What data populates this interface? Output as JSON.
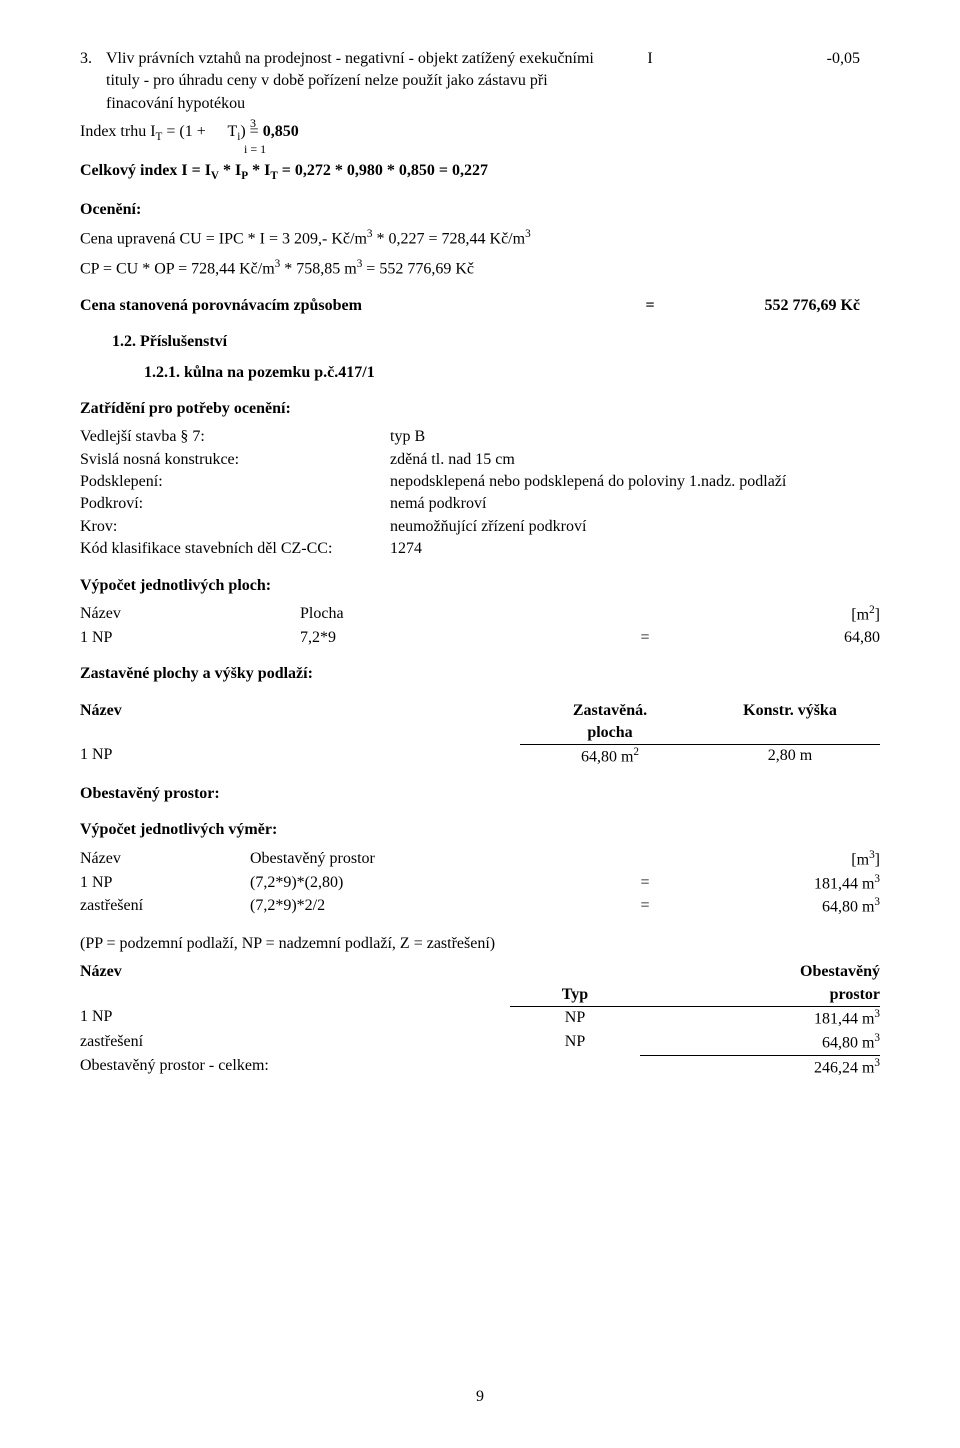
{
  "top_item": {
    "num": "3.",
    "text": "Vliv právních vztahů na prodejnost - negativní - objekt zatížený exekučními tituly - pro úhradu ceny v době pořízení nelze  použít jako zástavu při finacování hypotékou",
    "col_i": "I",
    "col_val": "-0,05"
  },
  "index_formula": {
    "line": "Index trhu I",
    "sub_t": "T",
    "rest": " = (1 + ",
    "sum_top": "3",
    "sum_placeholder": "",
    "t_i": " T",
    "sub_i": "i",
    "close": ") = ",
    "val": "0,850",
    "sum_bottom": "i = 1"
  },
  "celkovy": "Celkový index I = IV * IP * IT = 0,272 * 0,980 * 0,850 = 0,227",
  "celkovy_parts": {
    "pre": "Celkový index I = I",
    "v": "V",
    "s1": " * I",
    "p": "P",
    "s2": " * I",
    "t": "T",
    "rest": " = 0,272 * 0,980 * 0,850 = 0,227"
  },
  "oceneni": {
    "heading": "Ocenění:",
    "line1_pre": "Cena upravená CU = IPC * I = 3 209,- Kč/m",
    "line1_sup1": "3",
    "line1_mid": " * 0,227 = 728,44 Kč/m",
    "line1_sup2": "3",
    "line2_pre": "CP = CU * OP = 728,44 Kč/m",
    "line2_sup1": "3",
    "line2_mid": " * 758,85 m",
    "line2_sup2": "3",
    "line2_rest": " = 552 776,69 Kč"
  },
  "cena_stanovena": {
    "label": "Cena stanovená porovnávacím způsobem",
    "eq": "=",
    "val": "552 776,69 Kč"
  },
  "h12": "1.2. Příslušenství",
  "h121": "1.2.1. kůlna  na pozemku p.č.417/1",
  "zatrideni": {
    "heading": "Zatřídění pro potřeby ocenění:",
    "rows": [
      {
        "l": "Vedlejší stavba § 7:",
        "r": "typ B"
      },
      {
        "l": "Svislá nosná konstrukce:",
        "r": "zděná tl. nad 15 cm"
      },
      {
        "l": "Podsklepení:",
        "r": "nepodsklepená nebo podsklepená do poloviny 1.nadz. podlaží"
      },
      {
        "l": "Podkroví:",
        "r": "nemá podkroví"
      },
      {
        "l": "Krov:",
        "r": "neumožňující zřízení podkroví"
      },
      {
        "l": "Kód klasifikace stavebních děl CZ-CC:",
        "r": " 1274"
      }
    ]
  },
  "vypocet_ploch": {
    "heading": "Výpočet jednotlivých ploch:",
    "header": {
      "c1": "Název",
      "c2": "Plocha",
      "c4_pre": "[m",
      "c4_sup": "2",
      "c4_post": "]"
    },
    "rows": [
      {
        "c1": "1 NP",
        "c2": "7,2*9",
        "c3": "=",
        "c4": "64,80"
      }
    ]
  },
  "zast_heading": "Zastavěné plochy a výšky podlaží:",
  "zast_table": {
    "header": {
      "c1": "Název",
      "c2a": "Zastavěná.",
      "c2b": "plocha",
      "c3a": "Konstr. výška"
    },
    "row": {
      "c1": "1 NP",
      "c2_pre": "64,80 m",
      "c2_sup": "2",
      "c3": "2,80 m"
    }
  },
  "obest_heading": "Obestavěný prostor:",
  "vymer": {
    "heading": "Výpočet jednotlivých výměr:",
    "header": {
      "c1": "Název",
      "c2": "Obestavěný prostor",
      "c4_pre": "[m",
      "c4_sup": "3",
      "c4_post": "]"
    },
    "rows": [
      {
        "c1": "1 NP",
        "c2": "(7,2*9)*(2,80)",
        "c3": "=",
        "c4_pre": "181,44 m",
        "c4_sup": "3"
      },
      {
        "c1": "zastřešení",
        "c2": "(7,2*9)*2/2",
        "c3": "=",
        "c4_pre": "64,80 m",
        "c4_sup": "3"
      }
    ]
  },
  "pp_note": "(PP = podzemní podlaží, NP = nadzemní podlaží, Z = zastřešení)",
  "typ_table": {
    "header": {
      "c1": "Název",
      "c2": "Typ",
      "c3a": "Obestavěný",
      "c3b": "prostor"
    },
    "rows": [
      {
        "c1": "1 NP",
        "c2": "NP",
        "c3_pre": "181,44 m",
        "c3_sup": "3"
      },
      {
        "c1": "zastřešení",
        "c2": "NP",
        "c3_pre": "64,80 m",
        "c3_sup": "3"
      }
    ],
    "total": {
      "c1": "Obestavěný prostor - celkem:",
      "c3_pre": "246,24 m",
      "c3_sup": "3"
    }
  },
  "page_num": "9"
}
